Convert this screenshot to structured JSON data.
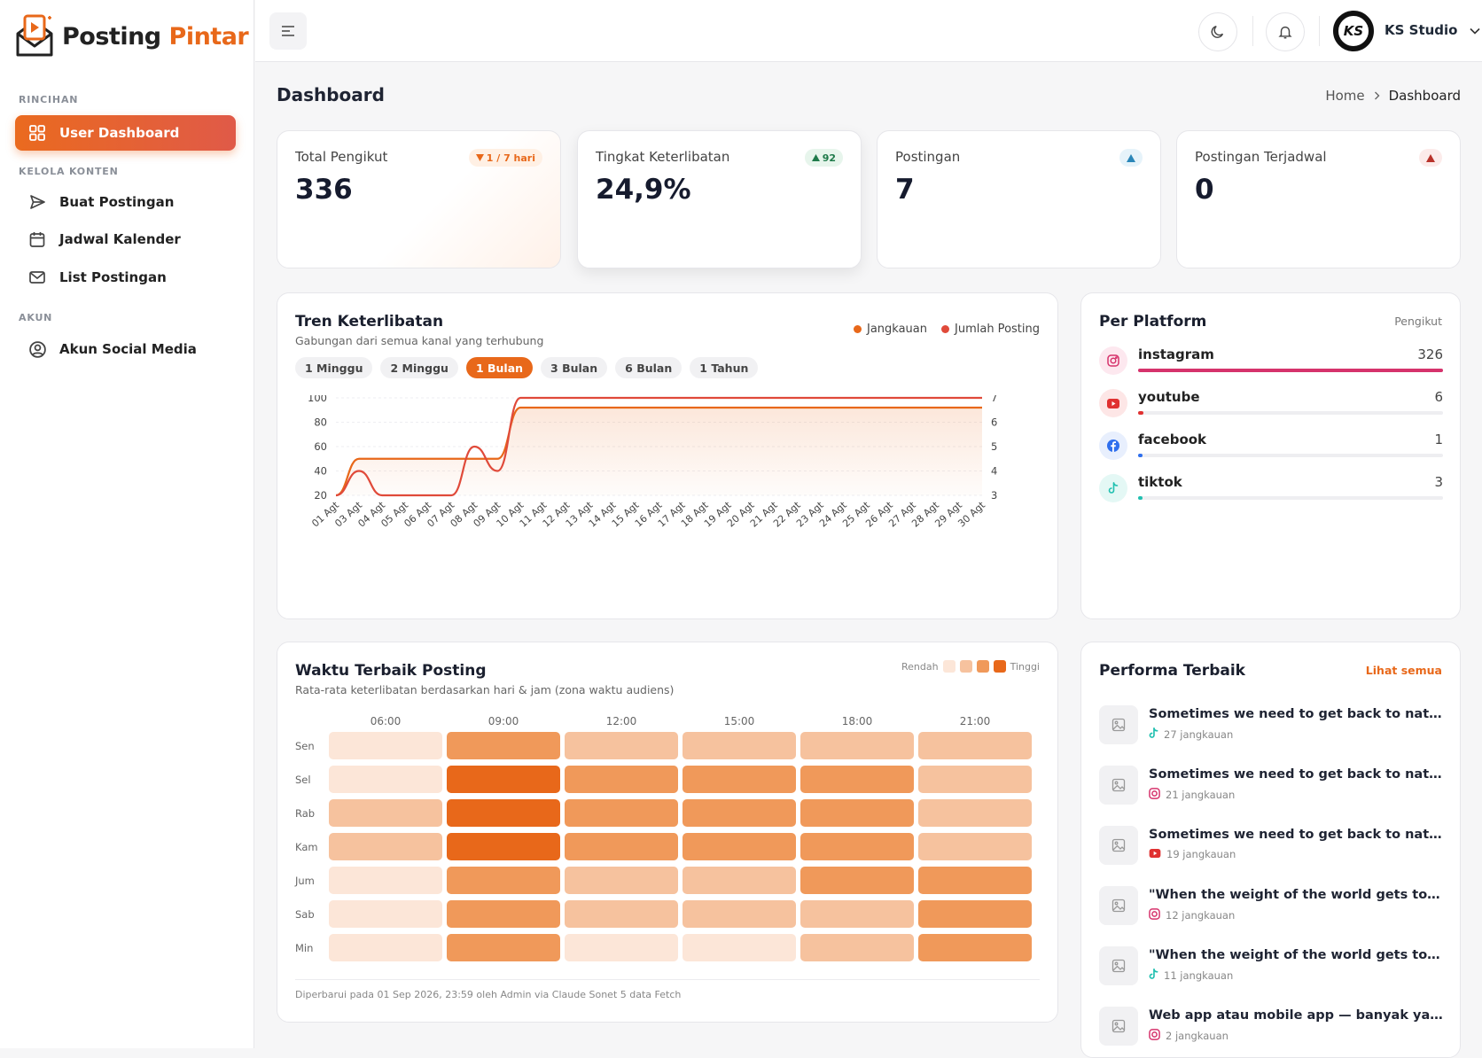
{
  "app": {
    "name_part1": "Posting",
    "name_part2": "Pintar"
  },
  "sidebar": {
    "sections": [
      {
        "label": "RINCIHAN"
      },
      {
        "label": "KELOLA KONTEN"
      },
      {
        "label": "AKUN"
      }
    ],
    "items": [
      {
        "label": "User Dashboard",
        "icon": "grid-icon",
        "active": true
      },
      {
        "label": "Buat Postingan",
        "icon": "send-icon"
      },
      {
        "label": "Jadwal Kalender",
        "icon": "calendar-icon"
      },
      {
        "label": "List Postingan",
        "icon": "mail-icon"
      },
      {
        "label": "Akun Social Media",
        "icon": "user-circle-icon"
      }
    ]
  },
  "header": {
    "user_name": "KS Studio",
    "avatar_initials": "KS"
  },
  "page": {
    "title": "Dashboard",
    "breadcrumb": [
      "Home",
      "Dashboard"
    ]
  },
  "stats": [
    {
      "label": "Total Pengikut",
      "value": "336",
      "badge": "1 / 7 hari",
      "badge_dir": "down",
      "badge_color": "#e8681a"
    },
    {
      "label": "Tingkat Keterlibatan",
      "value": "24,9%",
      "badge": "92",
      "badge_dir": "up",
      "badge_color": "#1f7a4a"
    },
    {
      "label": "Postingan",
      "value": "7",
      "badge": "",
      "badge_dir": "up",
      "badge_color": "#2a86b8"
    },
    {
      "label": "Postingan Terjadwal",
      "value": "0",
      "badge": "",
      "badge_dir": "up",
      "badge_color": "#c0392b"
    }
  ],
  "trend": {
    "title": "Tren Keterlibatan",
    "subtitle": "Gabungan dari semua kanal yang terhubung",
    "legend": [
      {
        "label": "Jangkauan",
        "color": "#e8681a"
      },
      {
        "label": "Jumlah Posting",
        "color": "#e04a3a"
      }
    ],
    "ranges": [
      "1 Minggu",
      "2 Minggu",
      "1 Bulan",
      "3 Bulan",
      "6 Bulan",
      "1 Tahun"
    ],
    "active_range": "1 Bulan"
  },
  "chart_data": {
    "type": "line",
    "x": [
      "01 Agt",
      "03 Agt",
      "04 Agt",
      "05 Agt",
      "06 Agt",
      "07 Agt",
      "08 Agt",
      "09 Agt",
      "10 Agt",
      "11 Agt",
      "12 Agt",
      "13 Agt",
      "14 Agt",
      "15 Agt",
      "16 Agt",
      "17 Agt",
      "18 Agt",
      "19 Agt",
      "20 Agt",
      "21 Agt",
      "22 Agt",
      "23 Agt",
      "24 Agt",
      "25 Agt",
      "26 Agt",
      "27 Agt",
      "28 Agt",
      "29 Agt",
      "30 Agt"
    ],
    "series": [
      {
        "name": "Jangkauan",
        "axis": "left",
        "color": "#e8681a",
        "values": [
          20,
          50,
          50,
          50,
          50,
          50,
          50,
          50,
          92,
          92,
          92,
          92,
          92,
          92,
          92,
          92,
          92,
          92,
          92,
          92,
          92,
          92,
          92,
          92,
          92,
          92,
          92,
          92,
          92
        ]
      },
      {
        "name": "Jumlah Posting",
        "axis": "right",
        "color": "#e04a3a",
        "values": [
          3,
          4,
          3,
          3,
          3,
          3,
          5,
          4,
          7,
          7,
          7,
          7,
          7,
          7,
          7,
          7,
          7,
          7,
          7,
          7,
          7,
          7,
          7,
          7,
          7,
          7,
          7,
          7,
          7
        ]
      }
    ],
    "ylim": [
      20,
      100
    ],
    "yticks": [
      20,
      40,
      60,
      80,
      100
    ],
    "y2lim": [
      3,
      7
    ],
    "y2ticks": [
      3,
      4,
      5,
      6,
      7
    ]
  },
  "platforms": {
    "title": "Per Platform",
    "col_label": "Pengikut",
    "items": [
      {
        "name": "instagram",
        "value": "326",
        "fraction": 1.0,
        "color": "#d6336c",
        "icon": "instagram-icon",
        "bg": "#fde8ef"
      },
      {
        "name": "youtube",
        "value": "6",
        "fraction": 0.018,
        "color": "#e03131",
        "icon": "youtube-icon",
        "bg": "#fde6e6"
      },
      {
        "name": "facebook",
        "value": "1",
        "fraction": 0.003,
        "color": "#2f6fed",
        "icon": "facebook-icon",
        "bg": "#e8effd"
      },
      {
        "name": "tiktok",
        "value": "3",
        "fraction": 0.009,
        "color": "#20c0b0",
        "icon": "tiktok-icon",
        "bg": "#e4f8f5"
      }
    ]
  },
  "heatmap": {
    "title": "Waktu Terbaik Posting",
    "subtitle": "Rata-rata keterlibatan berdasarkan hari & jam (zona waktu audiens)",
    "legend_low": "Rendah",
    "legend_high": "Tinggi",
    "hours": [
      "06:00",
      "09:00",
      "12:00",
      "15:00",
      "18:00",
      "21:00"
    ],
    "days": [
      "Sen",
      "Sel",
      "Rab",
      "Kam",
      "Jum",
      "Sab",
      "Min"
    ],
    "levels": [
      [
        0,
        2,
        1,
        1,
        1,
        1
      ],
      [
        0,
        3,
        2,
        2,
        2,
        1
      ],
      [
        1,
        3,
        2,
        2,
        2,
        1
      ],
      [
        1,
        3,
        2,
        2,
        2,
        1
      ],
      [
        0,
        2,
        1,
        1,
        2,
        2
      ],
      [
        0,
        2,
        1,
        1,
        1,
        2
      ],
      [
        0,
        2,
        0,
        0,
        1,
        2
      ]
    ],
    "colors": [
      "#fce6d8",
      "#f6c29e",
      "#f0995a",
      "#e8681a"
    ],
    "footnote": "Diperbarui pada 01 Sep 2026, 23:59 oleh Admin via Claude Sonet 5 data Fetch"
  },
  "top_posts": {
    "title": "Performa Terbaik",
    "link": "Lihat semua",
    "items": [
      {
        "title": "Sometimes we need to get back to nature f...",
        "meta": "27 jangkauan",
        "platform": "tiktok-icon"
      },
      {
        "title": "Sometimes we need to get back to nature f...",
        "meta": "21 jangkauan",
        "platform": "instagram-icon"
      },
      {
        "title": "Sometimes we need to get back to nature f...",
        "meta": "19 jangkauan",
        "platform": "youtube-icon"
      },
      {
        "title": "\"When the weight of the world gets too hea...",
        "meta": "12 jangkauan",
        "platform": "instagram-icon"
      },
      {
        "title": "\"When the weight of the world gets too hea...",
        "meta": "11 jangkauan",
        "platform": "tiktok-icon"
      },
      {
        "title": "Web app atau mobile app — banyak yang m...",
        "meta": "2 jangkauan",
        "platform": "instagram-icon"
      }
    ]
  }
}
